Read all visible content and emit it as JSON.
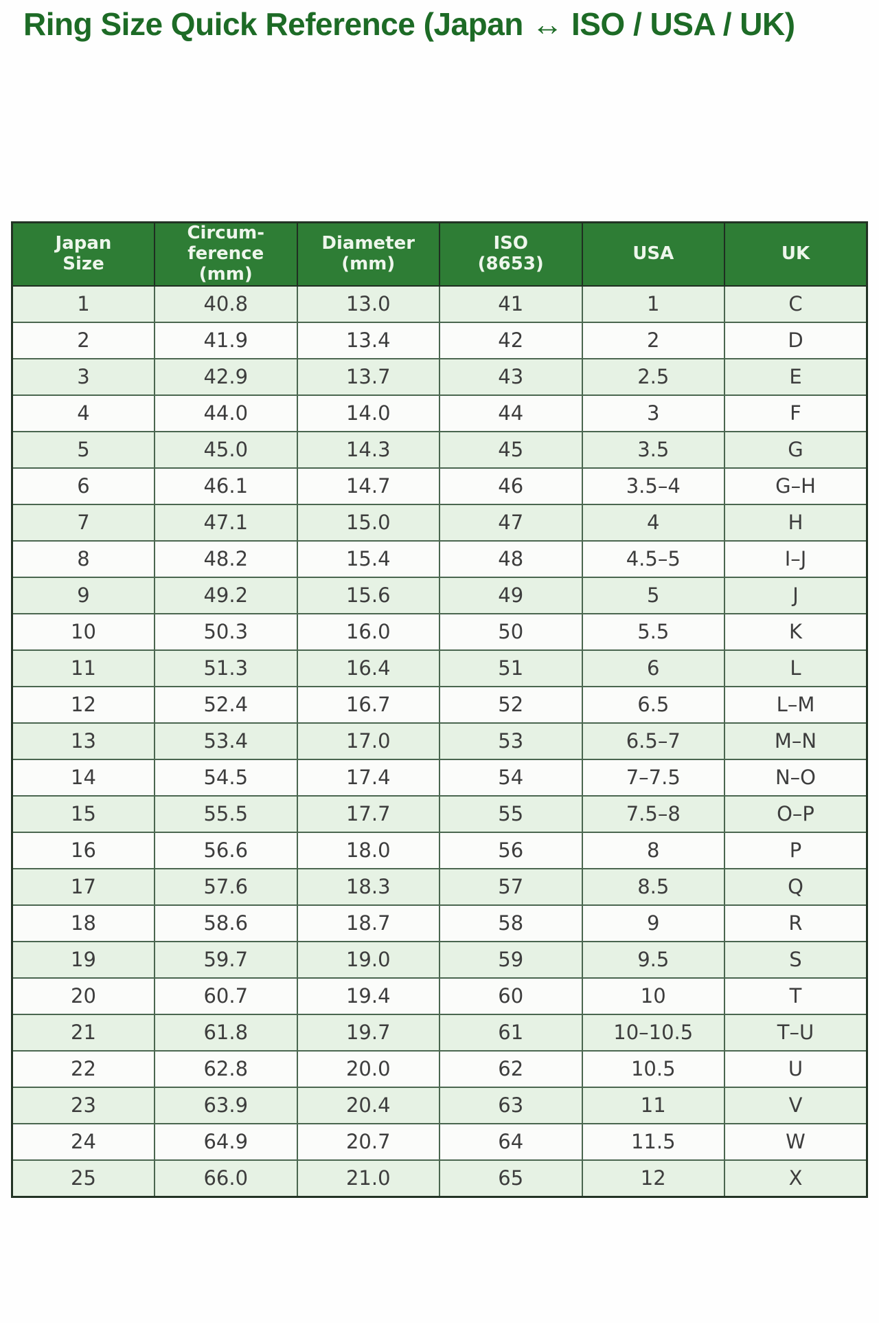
{
  "page": {
    "title": "Ring Size Quick Reference (Japan ↔ ISO / USA / UK)"
  },
  "colors": {
    "page_bg": "#fefefe",
    "title_color": "#1d6b26",
    "header_bg": "#2e7d35",
    "header_text": "#eef6ec",
    "header_border": "#1f2e21",
    "outer_border": "#223324",
    "grid_border": "#4a664f",
    "row_bg": "#fbfcfa",
    "row_alt_bg": "#e6f2e4",
    "cell_text": "#3d3d3d"
  },
  "table": {
    "columns": [
      "Japan\nSize",
      "Circum-\nference\n(mm)",
      "Diameter\n(mm)",
      "ISO\n(8653)",
      "USA",
      "UK"
    ],
    "rows": [
      [
        "1",
        "40.8",
        "13.0",
        "41",
        "1",
        "C"
      ],
      [
        "2",
        "41.9",
        "13.4",
        "42",
        "2",
        "D"
      ],
      [
        "3",
        "42.9",
        "13.7",
        "43",
        "2.5",
        "E"
      ],
      [
        "4",
        "44.0",
        "14.0",
        "44",
        "3",
        "F"
      ],
      [
        "5",
        "45.0",
        "14.3",
        "45",
        "3.5",
        "G"
      ],
      [
        "6",
        "46.1",
        "14.7",
        "46",
        "3.5–4",
        "G–H"
      ],
      [
        "7",
        "47.1",
        "15.0",
        "47",
        "4",
        "H"
      ],
      [
        "8",
        "48.2",
        "15.4",
        "48",
        "4.5–5",
        "I–J"
      ],
      [
        "9",
        "49.2",
        "15.6",
        "49",
        "5",
        "J"
      ],
      [
        "10",
        "50.3",
        "16.0",
        "50",
        "5.5",
        "K"
      ],
      [
        "11",
        "51.3",
        "16.4",
        "51",
        "6",
        "L"
      ],
      [
        "12",
        "52.4",
        "16.7",
        "52",
        "6.5",
        "L–M"
      ],
      [
        "13",
        "53.4",
        "17.0",
        "53",
        "6.5–7",
        "M–N"
      ],
      [
        "14",
        "54.5",
        "17.4",
        "54",
        "7–7.5",
        "N–O"
      ],
      [
        "15",
        "55.5",
        "17.7",
        "55",
        "7.5–8",
        "O–P"
      ],
      [
        "16",
        "56.6",
        "18.0",
        "56",
        "8",
        "P"
      ],
      [
        "17",
        "57.6",
        "18.3",
        "57",
        "8.5",
        "Q"
      ],
      [
        "18",
        "58.6",
        "18.7",
        "58",
        "9",
        "R"
      ],
      [
        "19",
        "59.7",
        "19.0",
        "59",
        "9.5",
        "S"
      ],
      [
        "20",
        "60.7",
        "19.4",
        "60",
        "10",
        "T"
      ],
      [
        "21",
        "61.8",
        "19.7",
        "61",
        "10–10.5",
        "T–U"
      ],
      [
        "22",
        "62.8",
        "20.0",
        "62",
        "10.5",
        "U"
      ],
      [
        "23",
        "63.9",
        "20.4",
        "63",
        "11",
        "V"
      ],
      [
        "24",
        "64.9",
        "20.7",
        "64",
        "11.5",
        "W"
      ],
      [
        "25",
        "66.0",
        "21.0",
        "65",
        "12",
        "X"
      ]
    ]
  },
  "chart_data": {
    "type": "table",
    "title": "Ring Size Quick Reference (Japan ↔ ISO / USA / UK)",
    "columns": [
      "Japan Size",
      "Circumference (mm)",
      "Diameter (mm)",
      "ISO (8653)",
      "USA",
      "UK"
    ],
    "rows": [
      [
        1,
        40.8,
        13.0,
        41,
        "1",
        "C"
      ],
      [
        2,
        41.9,
        13.4,
        42,
        "2",
        "D"
      ],
      [
        3,
        42.9,
        13.7,
        43,
        "2.5",
        "E"
      ],
      [
        4,
        44.0,
        14.0,
        44,
        "3",
        "F"
      ],
      [
        5,
        45.0,
        14.3,
        45,
        "3.5",
        "G"
      ],
      [
        6,
        46.1,
        14.7,
        46,
        "3.5–4",
        "G–H"
      ],
      [
        7,
        47.1,
        15.0,
        47,
        "4",
        "H"
      ],
      [
        8,
        48.2,
        15.4,
        48,
        "4.5–5",
        "I–J"
      ],
      [
        9,
        49.2,
        15.6,
        49,
        "5",
        "J"
      ],
      [
        10,
        50.3,
        16.0,
        50,
        "5.5",
        "K"
      ],
      [
        11,
        51.3,
        16.4,
        51,
        "6",
        "L"
      ],
      [
        12,
        52.4,
        16.7,
        52,
        "6.5",
        "L–M"
      ],
      [
        13,
        53.4,
        17.0,
        53,
        "6.5–7",
        "M–N"
      ],
      [
        14,
        54.5,
        17.4,
        54,
        "7–7.5",
        "N–O"
      ],
      [
        15,
        55.5,
        17.7,
        55,
        "7.5–8",
        "O–P"
      ],
      [
        16,
        56.6,
        18.0,
        56,
        "8",
        "P"
      ],
      [
        17,
        57.6,
        18.3,
        57,
        "8.5",
        "Q"
      ],
      [
        18,
        58.6,
        18.7,
        58,
        "9",
        "R"
      ],
      [
        19,
        59.7,
        19.0,
        59,
        "9.5",
        "S"
      ],
      [
        20,
        60.7,
        19.4,
        60,
        "10",
        "T"
      ],
      [
        21,
        61.8,
        19.7,
        61,
        "10–10.5",
        "T–U"
      ],
      [
        22,
        62.8,
        20.0,
        62,
        "10.5",
        "U"
      ],
      [
        23,
        63.9,
        20.4,
        63,
        "11",
        "V"
      ],
      [
        24,
        64.9,
        20.7,
        64,
        "11.5",
        "W"
      ],
      [
        25,
        66.0,
        21.0,
        65,
        "12",
        "X"
      ]
    ]
  }
}
